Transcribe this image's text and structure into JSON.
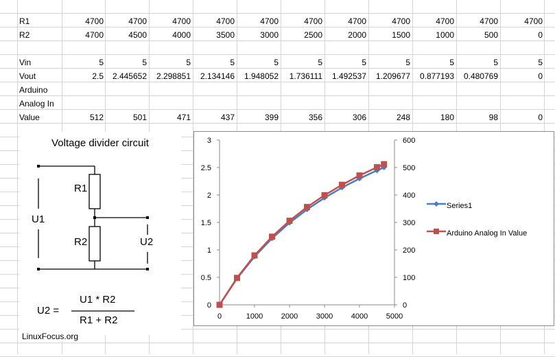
{
  "sheet": {
    "rows": {
      "r1": {
        "label": "R1",
        "values": [
          "4700",
          "4700",
          "4700",
          "4700",
          "4700",
          "4700",
          "4700",
          "4700",
          "4700",
          "4700",
          "4700"
        ]
      },
      "r2": {
        "label": "R2",
        "values": [
          "4700",
          "4500",
          "4000",
          "3500",
          "3000",
          "2500",
          "2000",
          "1500",
          "1000",
          "500",
          "0"
        ]
      },
      "vin": {
        "label": "Vin",
        "values": [
          "5",
          "5",
          "5",
          "5",
          "5",
          "5",
          "5",
          "5",
          "5",
          "5",
          "5"
        ]
      },
      "vout": {
        "label": "Vout",
        "values": [
          "2.5",
          "2.445652",
          "2.298851",
          "2.134146",
          "1.948052",
          "1.736111",
          "1.492537",
          "1.209677",
          "0.877193",
          "0.480769",
          "0"
        ]
      },
      "analog": {
        "label_line1": "Arduino",
        "label_line2": "Analog In",
        "label_line3": "Value",
        "values": [
          "512",
          "501",
          "471",
          "437",
          "399",
          "356",
          "306",
          "248",
          "180",
          "98",
          "0"
        ]
      }
    }
  },
  "circuit": {
    "title": "Voltage divider circuit",
    "r1": "R1",
    "r2": "R2",
    "u1": "U1",
    "u2": "U2",
    "formula_lhs": "U2 =",
    "formula_num": "U1 * R2",
    "formula_den": "R1 + R2"
  },
  "credit": "LinuxFocus.org",
  "chart_data": {
    "type": "line",
    "x": [
      0,
      500,
      1000,
      1500,
      2000,
      2500,
      3000,
      3500,
      4000,
      4500,
      4700
    ],
    "series": [
      {
        "name": "Series1",
        "axis": "left",
        "color": "#4a7cc4",
        "values": [
          0,
          0.480769,
          0.877193,
          1.209677,
          1.492537,
          1.736111,
          1.948052,
          2.134146,
          2.298851,
          2.445652,
          2.5
        ]
      },
      {
        "name": "Arduino Analog In Value",
        "axis": "right",
        "color": "#c0504d",
        "values": [
          0,
          98,
          180,
          248,
          306,
          356,
          399,
          437,
          471,
          501,
          512
        ]
      }
    ],
    "xlim": [
      0,
      5000
    ],
    "x_ticks": [
      "0",
      "1000",
      "2000",
      "3000",
      "4000",
      "5000"
    ],
    "ylim_left": [
      0,
      3
    ],
    "y_ticks_left": [
      "0",
      "0.5",
      "1",
      "1.5",
      "2",
      "2.5",
      "3"
    ],
    "ylim_right": [
      0,
      600
    ],
    "y_ticks_right": [
      "0",
      "100",
      "200",
      "300",
      "400",
      "500",
      "600"
    ],
    "grid": false,
    "legend_position": "right"
  }
}
